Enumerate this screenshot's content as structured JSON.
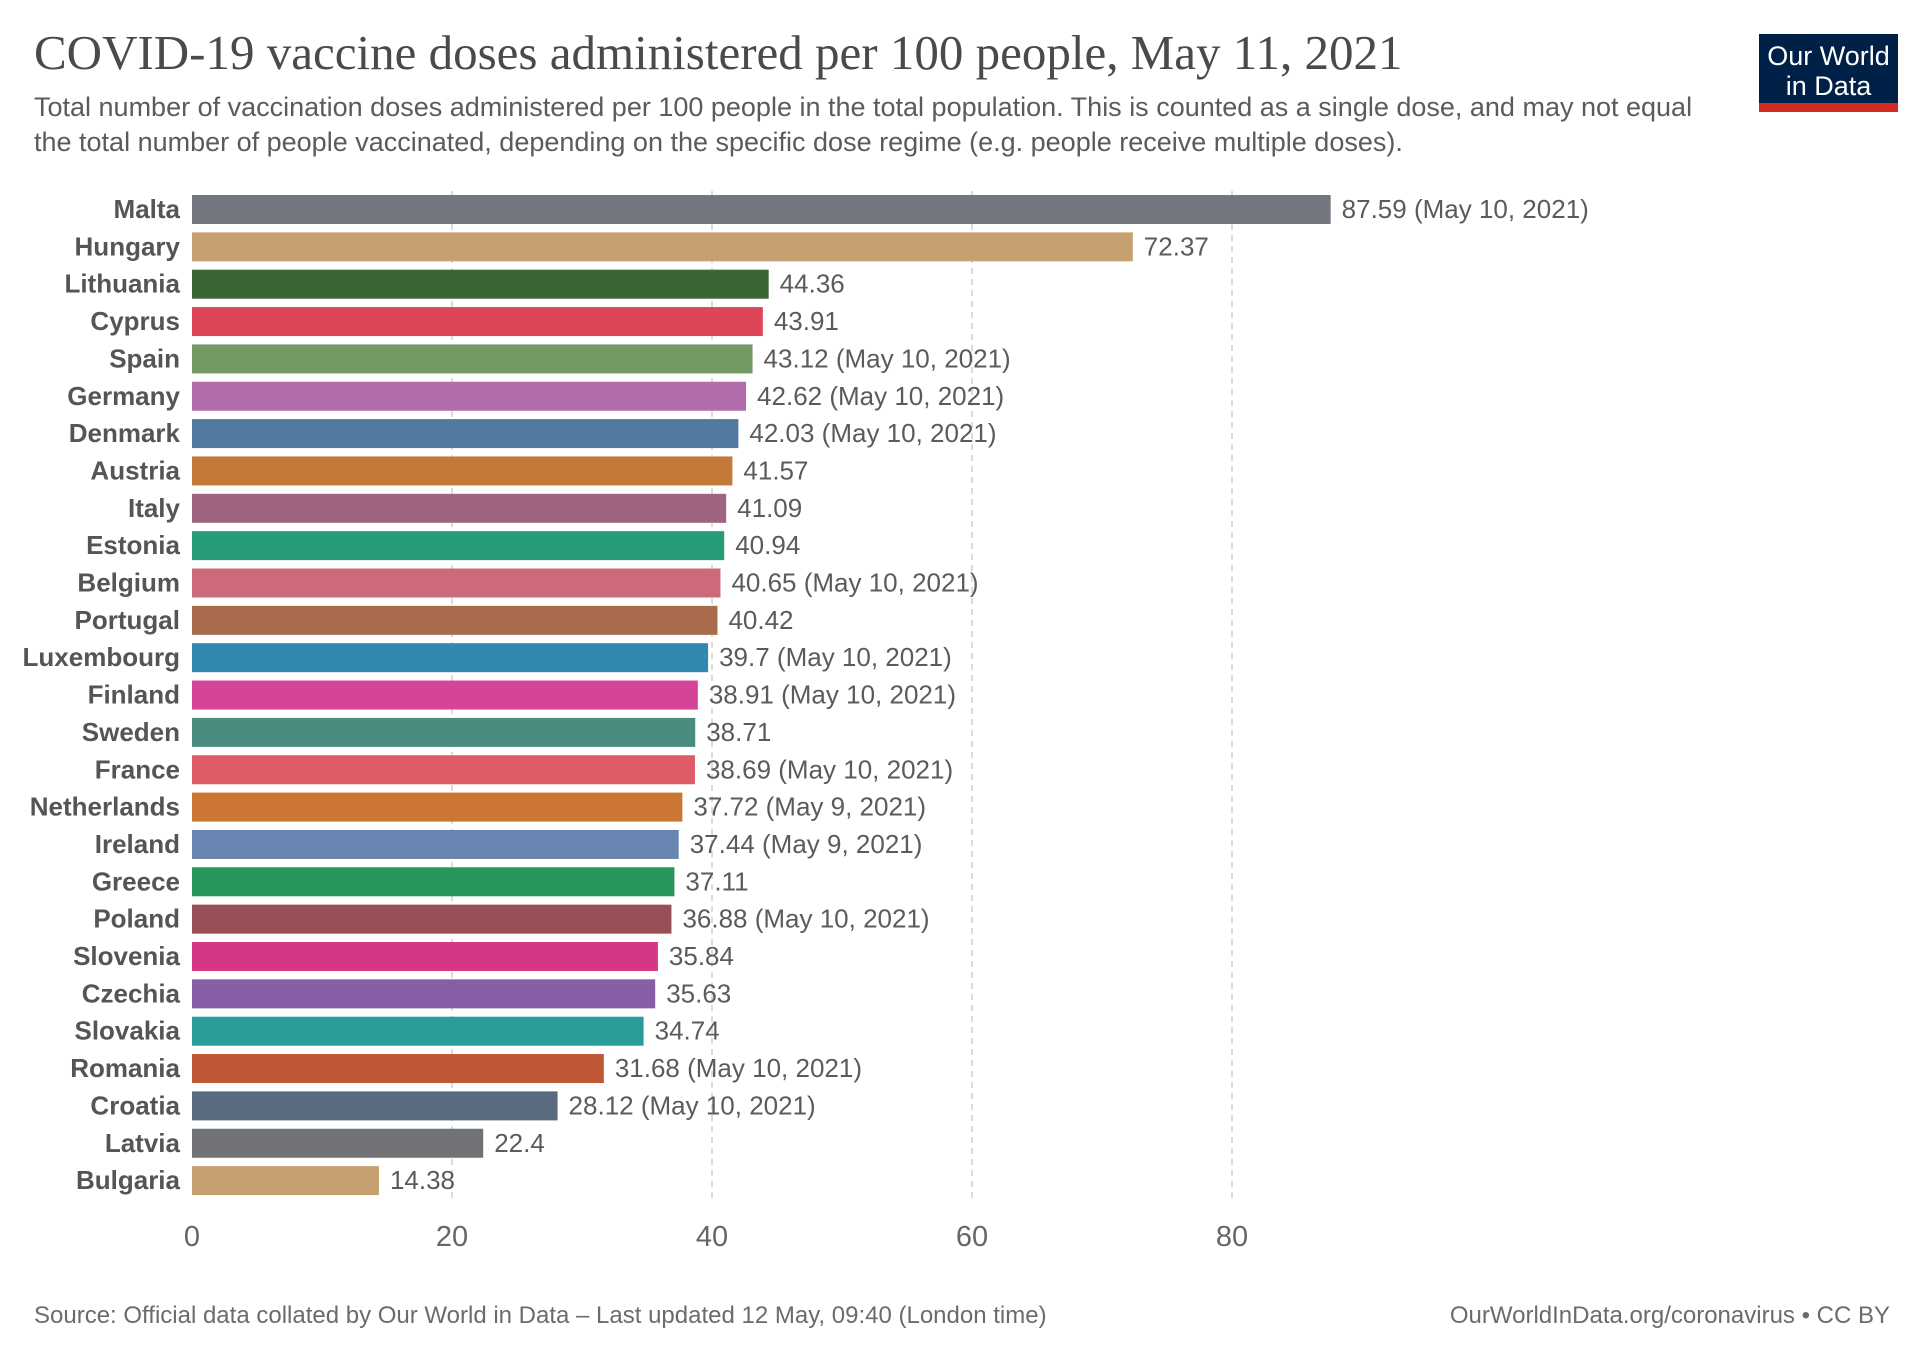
{
  "header": {
    "title": "COVID-19 vaccine doses administered per 100 people, May 11, 2021",
    "subtitle": "Total number of vaccination doses administered per 100 people in the total population. This is counted as a single dose, and may not equal the total number of people vaccinated, depending on the specific dose regime (e.g. people receive multiple doses)."
  },
  "logo": {
    "line1": "Our World",
    "line2": "in Data",
    "bg_color": "#002147",
    "accent_color": "#d42b21"
  },
  "footer": {
    "source": "Source: Official data collated by Our World in Data – Last updated 12 May, 09:40 (London time)",
    "link": "OurWorldInData.org/coronavirus • CC BY"
  },
  "chart_data": {
    "type": "bar",
    "orientation": "horizontal",
    "grid": true,
    "xlim": [
      0,
      100
    ],
    "xticks": [
      0,
      20,
      40,
      60,
      80
    ],
    "categories": [
      "Malta",
      "Hungary",
      "Lithuania",
      "Cyprus",
      "Spain",
      "Germany",
      "Denmark",
      "Austria",
      "Italy",
      "Estonia",
      "Belgium",
      "Portugal",
      "Luxembourg",
      "Finland",
      "Sweden",
      "France",
      "Netherlands",
      "Ireland",
      "Greece",
      "Poland",
      "Slovenia",
      "Czechia",
      "Slovakia",
      "Romania",
      "Croatia",
      "Latvia",
      "Bulgaria"
    ],
    "values": [
      87.59,
      72.37,
      44.36,
      43.91,
      43.12,
      42.62,
      42.03,
      41.57,
      41.09,
      40.94,
      40.65,
      40.42,
      39.7,
      38.91,
      38.71,
      38.69,
      37.72,
      37.44,
      37.11,
      36.88,
      35.84,
      35.63,
      34.74,
      31.68,
      28.12,
      22.4,
      14.38
    ],
    "labels": [
      "87.59 (May 10, 2021)",
      "72.37",
      "44.36",
      "43.91",
      "43.12 (May 10, 2021)",
      "42.62 (May 10, 2021)",
      "42.03 (May 10, 2021)",
      "41.57",
      "41.09",
      "40.94",
      "40.65 (May 10, 2021)",
      "40.42",
      "39.7 (May 10, 2021)",
      "38.91 (May 10, 2021)",
      "38.71",
      "38.69 (May 10, 2021)",
      "37.72 (May 9, 2021)",
      "37.44 (May 9, 2021)",
      "37.11",
      "36.88 (May 10, 2021)",
      "35.84",
      "35.63",
      "34.74",
      "31.68 (May 10, 2021)",
      "28.12 (May 10, 2021)",
      "22.4",
      "14.38"
    ],
    "colors": [
      "#737880",
      "#c6a070",
      "#3b6535",
      "#de4558",
      "#749a63",
      "#b06cab",
      "#52799e",
      "#c2793a",
      "#9f6480",
      "#269c79",
      "#cc6a7c",
      "#a86c4c",
      "#3287b0",
      "#d6449a",
      "#4a8c80",
      "#de5b68",
      "#cc7636",
      "#6885b1",
      "#28955d",
      "#994f56",
      "#d63784",
      "#865ea6",
      "#2a9c9a",
      "#bf5634",
      "#5a6b7f",
      "#707275",
      "#c6a070"
    ]
  }
}
